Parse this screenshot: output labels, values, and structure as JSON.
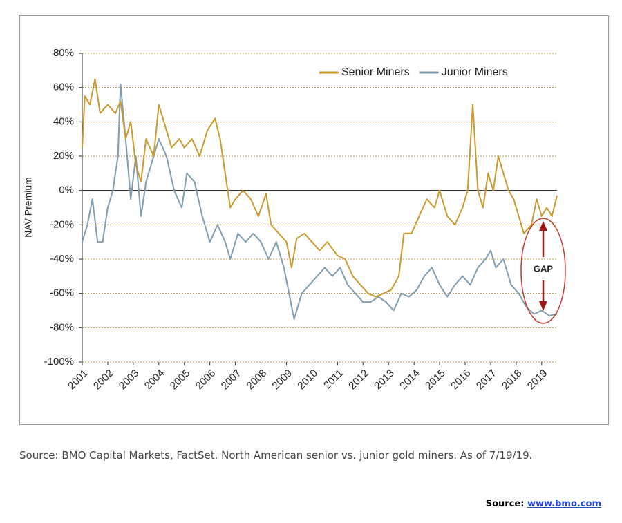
{
  "chart_data": {
    "type": "line",
    "y_label": "NAV Premium",
    "ylim": [
      -100,
      80
    ],
    "yticks": [
      {
        "value": -100,
        "label": "-100%"
      },
      {
        "value": -80,
        "label": "-80%"
      },
      {
        "value": -60,
        "label": "-60%"
      },
      {
        "value": -40,
        "label": "-40%"
      },
      {
        "value": -20,
        "label": "-20%"
      },
      {
        "value": 0,
        "label": "0%"
      },
      {
        "value": 20,
        "label": "20%"
      },
      {
        "value": 40,
        "label": "40%"
      },
      {
        "value": 60,
        "label": "60%"
      },
      {
        "value": 80,
        "label": "80%"
      }
    ],
    "xlim": [
      2001,
      2019.6
    ],
    "xticks": [
      2001,
      2002,
      2003,
      2004,
      2005,
      2006,
      2007,
      2008,
      2009,
      2010,
      2011,
      2012,
      2013,
      2014,
      2015,
      2016,
      2017,
      2018,
      2019
    ],
    "grid": true,
    "legend": "upper right",
    "series": [
      {
        "name": "Senior Miners",
        "color": "#c9992e",
        "x": [
          2001.0,
          2001.1,
          2001.3,
          2001.5,
          2001.7,
          2002.0,
          2002.3,
          2002.5,
          2002.7,
          2002.9,
          2003.1,
          2003.3,
          2003.5,
          2003.8,
          2004.0,
          2004.2,
          2004.5,
          2004.8,
          2005.0,
          2005.3,
          2005.6,
          2005.9,
          2006.2,
          2006.4,
          2006.6,
          2006.8,
          2007.0,
          2007.3,
          2007.6,
          2007.9,
          2008.2,
          2008.4,
          2008.7,
          2009.0,
          2009.2,
          2009.4,
          2009.7,
          2010.0,
          2010.3,
          2010.6,
          2011.0,
          2011.3,
          2011.6,
          2011.9,
          2012.2,
          2012.5,
          2012.8,
          2013.1,
          2013.4,
          2013.6,
          2013.9,
          2014.2,
          2014.5,
          2014.8,
          2015.0,
          2015.3,
          2015.6,
          2015.9,
          2016.1,
          2016.3,
          2016.5,
          2016.7,
          2016.9,
          2017.1,
          2017.3,
          2017.5,
          2017.7,
          2017.9,
          2018.1,
          2018.3,
          2018.6,
          2018.8,
          2019.0,
          2019.2,
          2019.4,
          2019.6
        ],
        "values": [
          25,
          55,
          50,
          65,
          45,
          50,
          45,
          52,
          30,
          40,
          15,
          5,
          30,
          20,
          50,
          40,
          25,
          30,
          25,
          30,
          20,
          35,
          42,
          30,
          10,
          -10,
          -5,
          0,
          -5,
          -15,
          -2,
          -20,
          -25,
          -30,
          -45,
          -28,
          -25,
          -30,
          -35,
          -30,
          -38,
          -40,
          -50,
          -55,
          -60,
          -62,
          -60,
          -58,
          -50,
          -25,
          -25,
          -15,
          -5,
          -10,
          0,
          -15,
          -20,
          -10,
          0,
          50,
          0,
          -10,
          10,
          0,
          20,
          10,
          0,
          -5,
          -15,
          -25,
          -20,
          -5,
          -15,
          -10,
          -15,
          -3
        ]
      },
      {
        "name": "Junior Miners",
        "color": "#7f9db0",
        "x": [
          2001.0,
          2001.2,
          2001.4,
          2001.6,
          2001.8,
          2002.0,
          2002.2,
          2002.4,
          2002.5,
          2002.7,
          2002.9,
          2003.1,
          2003.3,
          2003.5,
          2003.8,
          2004.0,
          2004.3,
          2004.6,
          2004.9,
          2005.1,
          2005.4,
          2005.7,
          2006.0,
          2006.3,
          2006.6,
          2006.8,
          2007.1,
          2007.4,
          2007.7,
          2008.0,
          2008.3,
          2008.6,
          2008.9,
          2009.1,
          2009.3,
          2009.6,
          2009.9,
          2010.2,
          2010.5,
          2010.8,
          2011.1,
          2011.4,
          2011.7,
          2012.0,
          2012.3,
          2012.6,
          2012.9,
          2013.2,
          2013.5,
          2013.8,
          2014.1,
          2014.4,
          2014.7,
          2015.0,
          2015.3,
          2015.6,
          2015.9,
          2016.2,
          2016.5,
          2016.8,
          2017.0,
          2017.2,
          2017.5,
          2017.8,
          2018.1,
          2018.4,
          2018.7,
          2019.0,
          2019.3,
          2019.6
        ],
        "values": [
          -30,
          -20,
          -5,
          -30,
          -30,
          -10,
          0,
          20,
          62,
          30,
          -5,
          20,
          -15,
          5,
          20,
          30,
          20,
          0,
          -10,
          10,
          5,
          -15,
          -30,
          -20,
          -30,
          -40,
          -25,
          -30,
          -25,
          -30,
          -40,
          -30,
          -45,
          -60,
          -75,
          -60,
          -55,
          -50,
          -45,
          -50,
          -45,
          -55,
          -60,
          -65,
          -65,
          -62,
          -65,
          -70,
          -60,
          -62,
          -58,
          -50,
          -45,
          -55,
          -62,
          -55,
          -50,
          -55,
          -45,
          -40,
          -35,
          -45,
          -40,
          -55,
          -60,
          -68,
          -72,
          -70,
          -73,
          -72
        ]
      }
    ],
    "annotation": "GAP",
    "caption": "Source: BMO Capital Markets, FactSet. North American senior vs. junior gold miners. As of 7/19/19.",
    "source_label": "Source:",
    "source_link": "www.bmo.com"
  }
}
